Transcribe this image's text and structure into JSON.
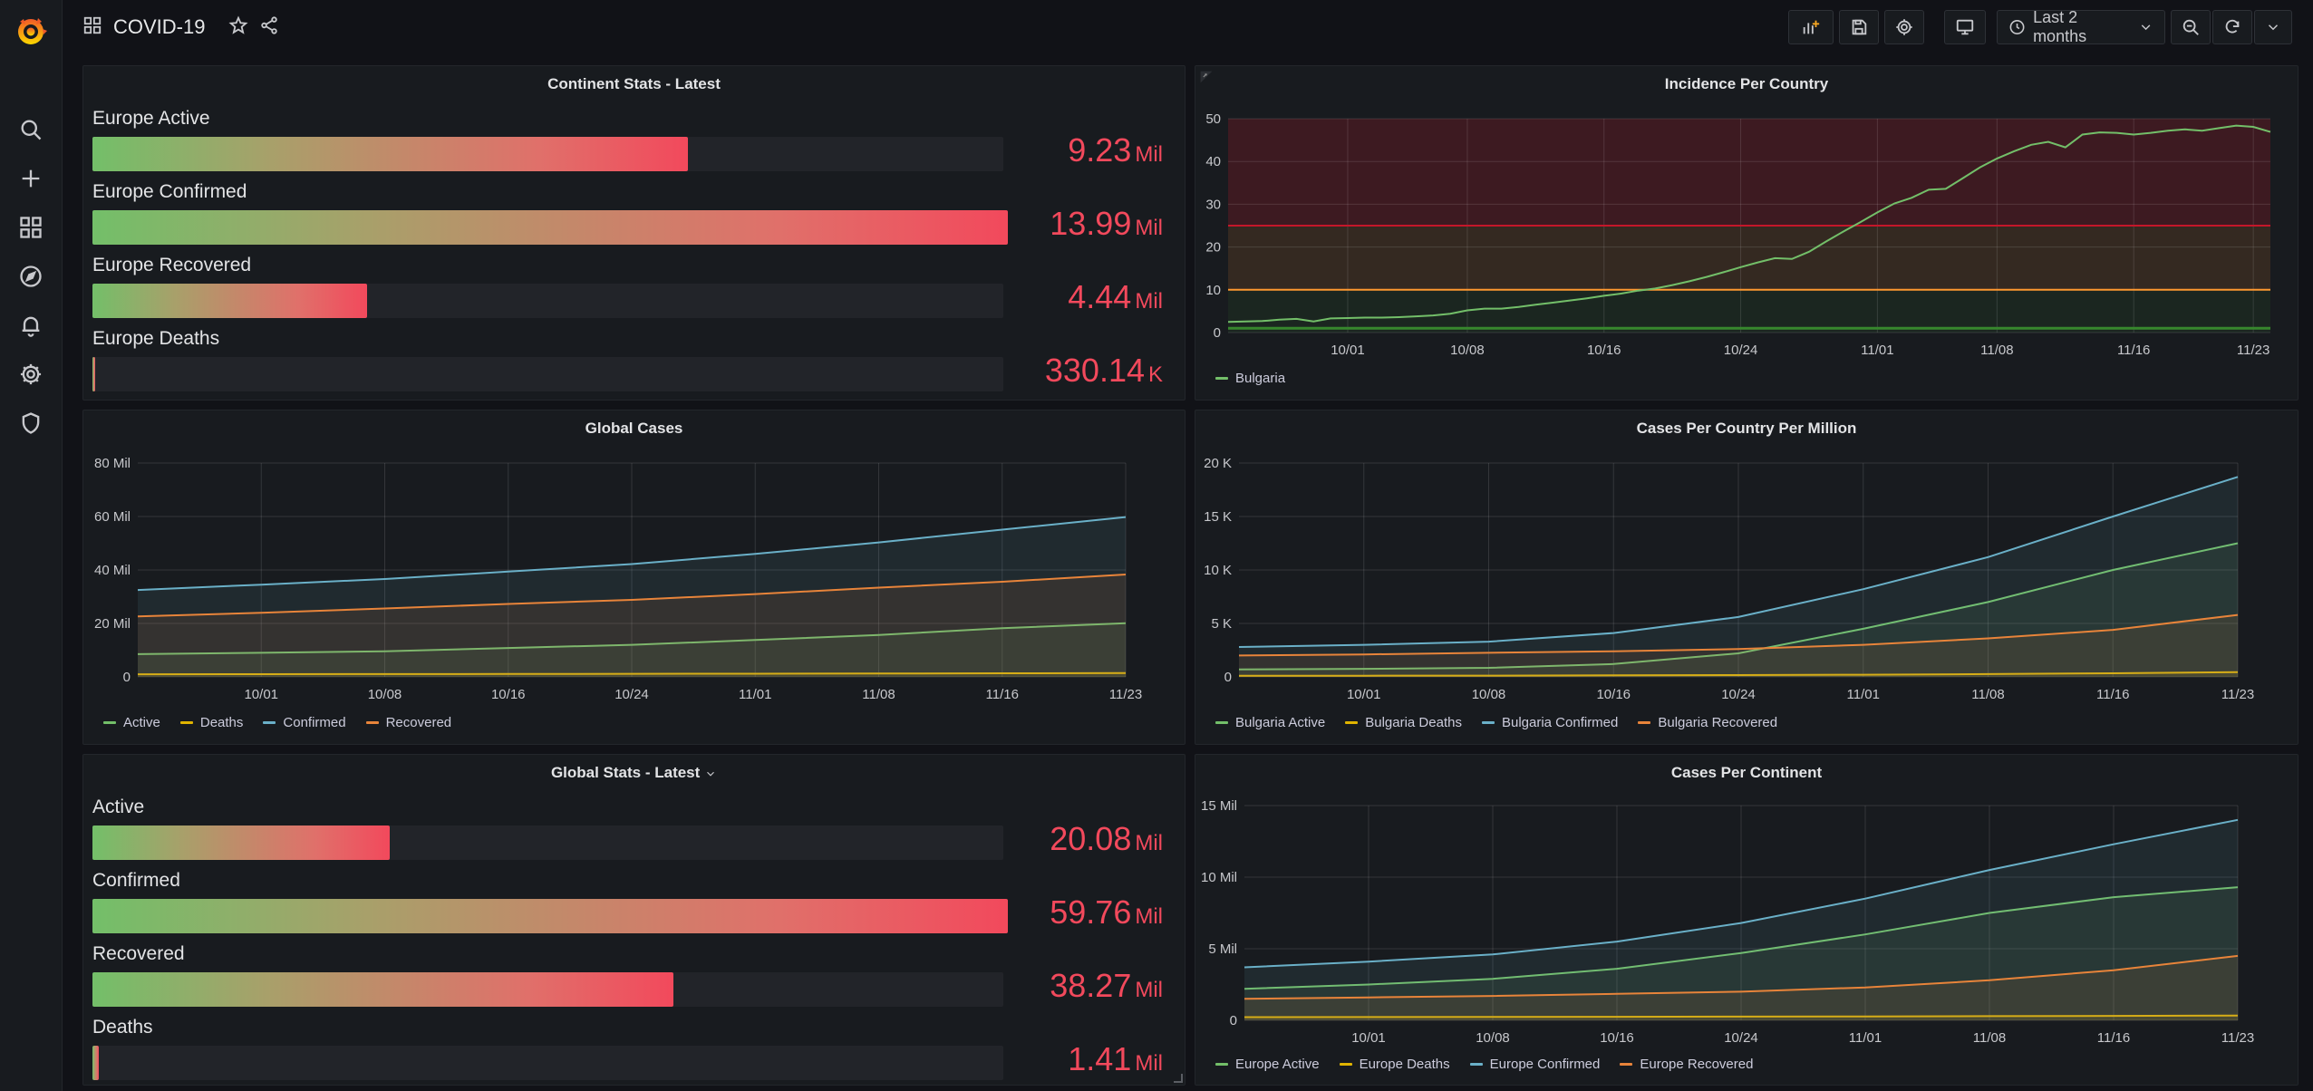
{
  "dashboard": {
    "title": "COVID-19"
  },
  "toolbar": {
    "time_range": "Last 2 months"
  },
  "colors": {
    "green": "#73bf69",
    "yellow": "#e0b400",
    "blue": "#6ab0c8",
    "orange": "#e8843a",
    "red": "#f2495c",
    "redline": "#c4162a",
    "orangeline": "#ff9830"
  },
  "panels": {
    "continent_stats": {
      "title": "Continent Stats - Latest",
      "rows": [
        {
          "label": "Europe Active",
          "value": "9.23",
          "unit": "Mil",
          "fill": 0.65
        },
        {
          "label": "Europe Confirmed",
          "value": "13.99",
          "unit": "Mil",
          "fill": 1.0
        },
        {
          "label": "Europe Recovered",
          "value": "4.44",
          "unit": "Mil",
          "fill": 0.3
        },
        {
          "label": "Europe Deaths",
          "value": "330.14",
          "unit": "K",
          "fill": 0.002
        }
      ]
    },
    "global_stats": {
      "title": "Global Stats - Latest",
      "rows": [
        {
          "label": "Active",
          "value": "20.08",
          "unit": "Mil",
          "fill": 0.325
        },
        {
          "label": "Confirmed",
          "value": "59.76",
          "unit": "Mil",
          "fill": 1.0
        },
        {
          "label": "Recovered",
          "value": "38.27",
          "unit": "Mil",
          "fill": 0.635
        },
        {
          "label": "Deaths",
          "value": "1.41",
          "unit": "Mil",
          "fill": 0.007
        }
      ]
    },
    "incidence": {
      "title": "Incidence Per Country"
    },
    "global_cases": {
      "title": "Global Cases"
    },
    "cases_per_million": {
      "title": "Cases Per Country Per Million"
    },
    "cases_per_continent": {
      "title": "Cases Per Continent"
    }
  },
  "chart_data": [
    {
      "id": "incidence",
      "type": "line",
      "title": "Incidence Per Country",
      "x": [
        "09/24",
        "09/25",
        "09/26",
        "09/27",
        "09/28",
        "09/29",
        "09/30",
        "10/01",
        "10/02",
        "10/03",
        "10/04",
        "10/05",
        "10/06",
        "10/07",
        "10/08",
        "10/09",
        "10/10",
        "10/11",
        "10/12",
        "10/13",
        "10/14",
        "10/15",
        "10/16",
        "10/17",
        "10/18",
        "10/19",
        "10/20",
        "10/21",
        "10/22",
        "10/23",
        "10/24",
        "10/25",
        "10/26",
        "10/27",
        "10/28",
        "10/29",
        "10/30",
        "10/31",
        "11/01",
        "11/02",
        "11/03",
        "11/04",
        "11/05",
        "11/06",
        "11/07",
        "11/08",
        "11/09",
        "11/10",
        "11/11",
        "11/12",
        "11/13",
        "11/14",
        "11/15",
        "11/16",
        "11/17",
        "11/18",
        "11/19",
        "11/20",
        "11/21",
        "11/22",
        "11/23",
        "11/24"
      ],
      "xticks": [
        "10/01",
        "10/08",
        "10/16",
        "10/24",
        "11/01",
        "11/08",
        "11/16",
        "11/23"
      ],
      "yticks": [
        "0",
        "10",
        "20",
        "30",
        "40",
        "50"
      ],
      "ylim": [
        0,
        50
      ],
      "thresholds": [
        {
          "value": 10,
          "color": "#ff9830"
        },
        {
          "value": 25,
          "color": "#c4162a"
        }
      ],
      "series": [
        {
          "name": "Bulgaria",
          "color": "#73bf69",
          "values": [
            2.5,
            2.6,
            2.7,
            3.0,
            3.2,
            2.6,
            3.3,
            3.4,
            3.5,
            3.5,
            3.6,
            3.8,
            4.0,
            4.4,
            5.2,
            5.6,
            5.6,
            6.0,
            6.5,
            7.0,
            7.5,
            8.0,
            8.6,
            9.1,
            9.8,
            10.3,
            11.1,
            12.0,
            13.0,
            14.1,
            15.3,
            16.4,
            17.4,
            17.2,
            18.9,
            21.3,
            23.6,
            25.8,
            28.1,
            30.2,
            31.5,
            33.4,
            33.6,
            36.1,
            38.6,
            40.7,
            42.4,
            43.9,
            44.6,
            43.3,
            46.3,
            46.8,
            46.7,
            46.3,
            46.7,
            47.2,
            47.5,
            47.2,
            47.8,
            48.4,
            48.1,
            46.9
          ]
        }
      ],
      "legend": [
        "Bulgaria"
      ]
    },
    {
      "id": "global_cases",
      "type": "area",
      "title": "Global Cases",
      "x": [
        "09/24",
        "10/01",
        "10/08",
        "10/16",
        "10/24",
        "11/01",
        "11/08",
        "11/16",
        "11/23"
      ],
      "xticks": [
        "10/01",
        "10/08",
        "10/16",
        "10/24",
        "11/01",
        "11/08",
        "11/16",
        "11/23"
      ],
      "yticks": [
        "0",
        "20 Mil",
        "40 Mil",
        "60 Mil",
        "80 Mil"
      ],
      "ylim": [
        0,
        80
      ],
      "series": [
        {
          "name": "Active",
          "color": "#73bf69",
          "values": [
            8.5,
            9.0,
            9.6,
            10.8,
            12.0,
            13.8,
            15.7,
            18.2,
            20.1
          ]
        },
        {
          "name": "Deaths",
          "color": "#e0b400",
          "values": [
            0.98,
            1.01,
            1.06,
            1.1,
            1.15,
            1.2,
            1.27,
            1.34,
            1.41
          ]
        },
        {
          "name": "Confirmed",
          "color": "#6ab0c8",
          "values": [
            32.5,
            34.5,
            36.6,
            39.4,
            42.2,
            46.0,
            50.3,
            55.1,
            59.8
          ]
        },
        {
          "name": "Recovered",
          "color": "#e8843a",
          "values": [
            22.6,
            24.0,
            25.6,
            27.3,
            28.8,
            31.0,
            33.4,
            35.6,
            38.3
          ]
        }
      ],
      "legend": [
        "Active",
        "Deaths",
        "Confirmed",
        "Recovered"
      ]
    },
    {
      "id": "cases_per_million",
      "type": "area",
      "title": "Cases Per Country Per Million",
      "x": [
        "09/24",
        "10/01",
        "10/08",
        "10/16",
        "10/24",
        "11/01",
        "11/08",
        "11/16",
        "11/24"
      ],
      "xticks": [
        "10/01",
        "10/08",
        "10/16",
        "10/24",
        "11/01",
        "11/08",
        "11/16",
        "11/23"
      ],
      "yticks": [
        "0",
        "5 K",
        "10 K",
        "15 K",
        "20 K"
      ],
      "ylim": [
        0,
        20
      ],
      "series": [
        {
          "name": "Bulgaria Active",
          "color": "#73bf69",
          "values": [
            0.7,
            0.75,
            0.85,
            1.2,
            2.2,
            4.5,
            7.0,
            10.0,
            12.5
          ]
        },
        {
          "name": "Bulgaria Deaths",
          "color": "#e0b400",
          "values": [
            0.1,
            0.11,
            0.12,
            0.14,
            0.17,
            0.2,
            0.26,
            0.34,
            0.44
          ]
        },
        {
          "name": "Bulgaria Confirmed",
          "color": "#6ab0c8",
          "values": [
            2.8,
            3.0,
            3.3,
            4.1,
            5.6,
            8.2,
            11.2,
            15.0,
            18.7
          ]
        },
        {
          "name": "Bulgaria Recovered",
          "color": "#e8843a",
          "values": [
            2.0,
            2.1,
            2.25,
            2.4,
            2.6,
            3.0,
            3.6,
            4.4,
            5.8
          ]
        }
      ],
      "legend": [
        "Bulgaria Active",
        "Bulgaria Deaths",
        "Bulgaria Confirmed",
        "Bulgaria Recovered"
      ]
    },
    {
      "id": "cases_per_continent",
      "type": "area",
      "title": "Cases Per Continent",
      "x": [
        "09/24",
        "10/01",
        "10/08",
        "10/16",
        "10/24",
        "11/01",
        "11/08",
        "11/16",
        "11/24"
      ],
      "xticks": [
        "10/01",
        "10/08",
        "10/16",
        "10/24",
        "11/01",
        "11/08",
        "11/16",
        "11/23"
      ],
      "yticks": [
        "0",
        "5 Mil",
        "10 Mil",
        "15 Mil"
      ],
      "ylim": [
        0,
        15
      ],
      "series": [
        {
          "name": "Europe Active",
          "color": "#73bf69",
          "values": [
            2.2,
            2.5,
            2.9,
            3.6,
            4.7,
            6.0,
            7.5,
            8.6,
            9.3
          ]
        },
        {
          "name": "Europe Deaths",
          "color": "#e0b400",
          "values": [
            0.22,
            0.23,
            0.24,
            0.25,
            0.26,
            0.27,
            0.29,
            0.31,
            0.33
          ]
        },
        {
          "name": "Europe Confirmed",
          "color": "#6ab0c8",
          "values": [
            3.7,
            4.1,
            4.6,
            5.5,
            6.8,
            8.5,
            10.5,
            12.3,
            14.0
          ]
        },
        {
          "name": "Europe Recovered",
          "color": "#e8843a",
          "values": [
            1.5,
            1.6,
            1.7,
            1.85,
            2.0,
            2.3,
            2.8,
            3.5,
            4.5
          ]
        }
      ],
      "legend": [
        "Europe Active",
        "Europe Deaths",
        "Europe Confirmed",
        "Europe Recovered"
      ]
    }
  ]
}
